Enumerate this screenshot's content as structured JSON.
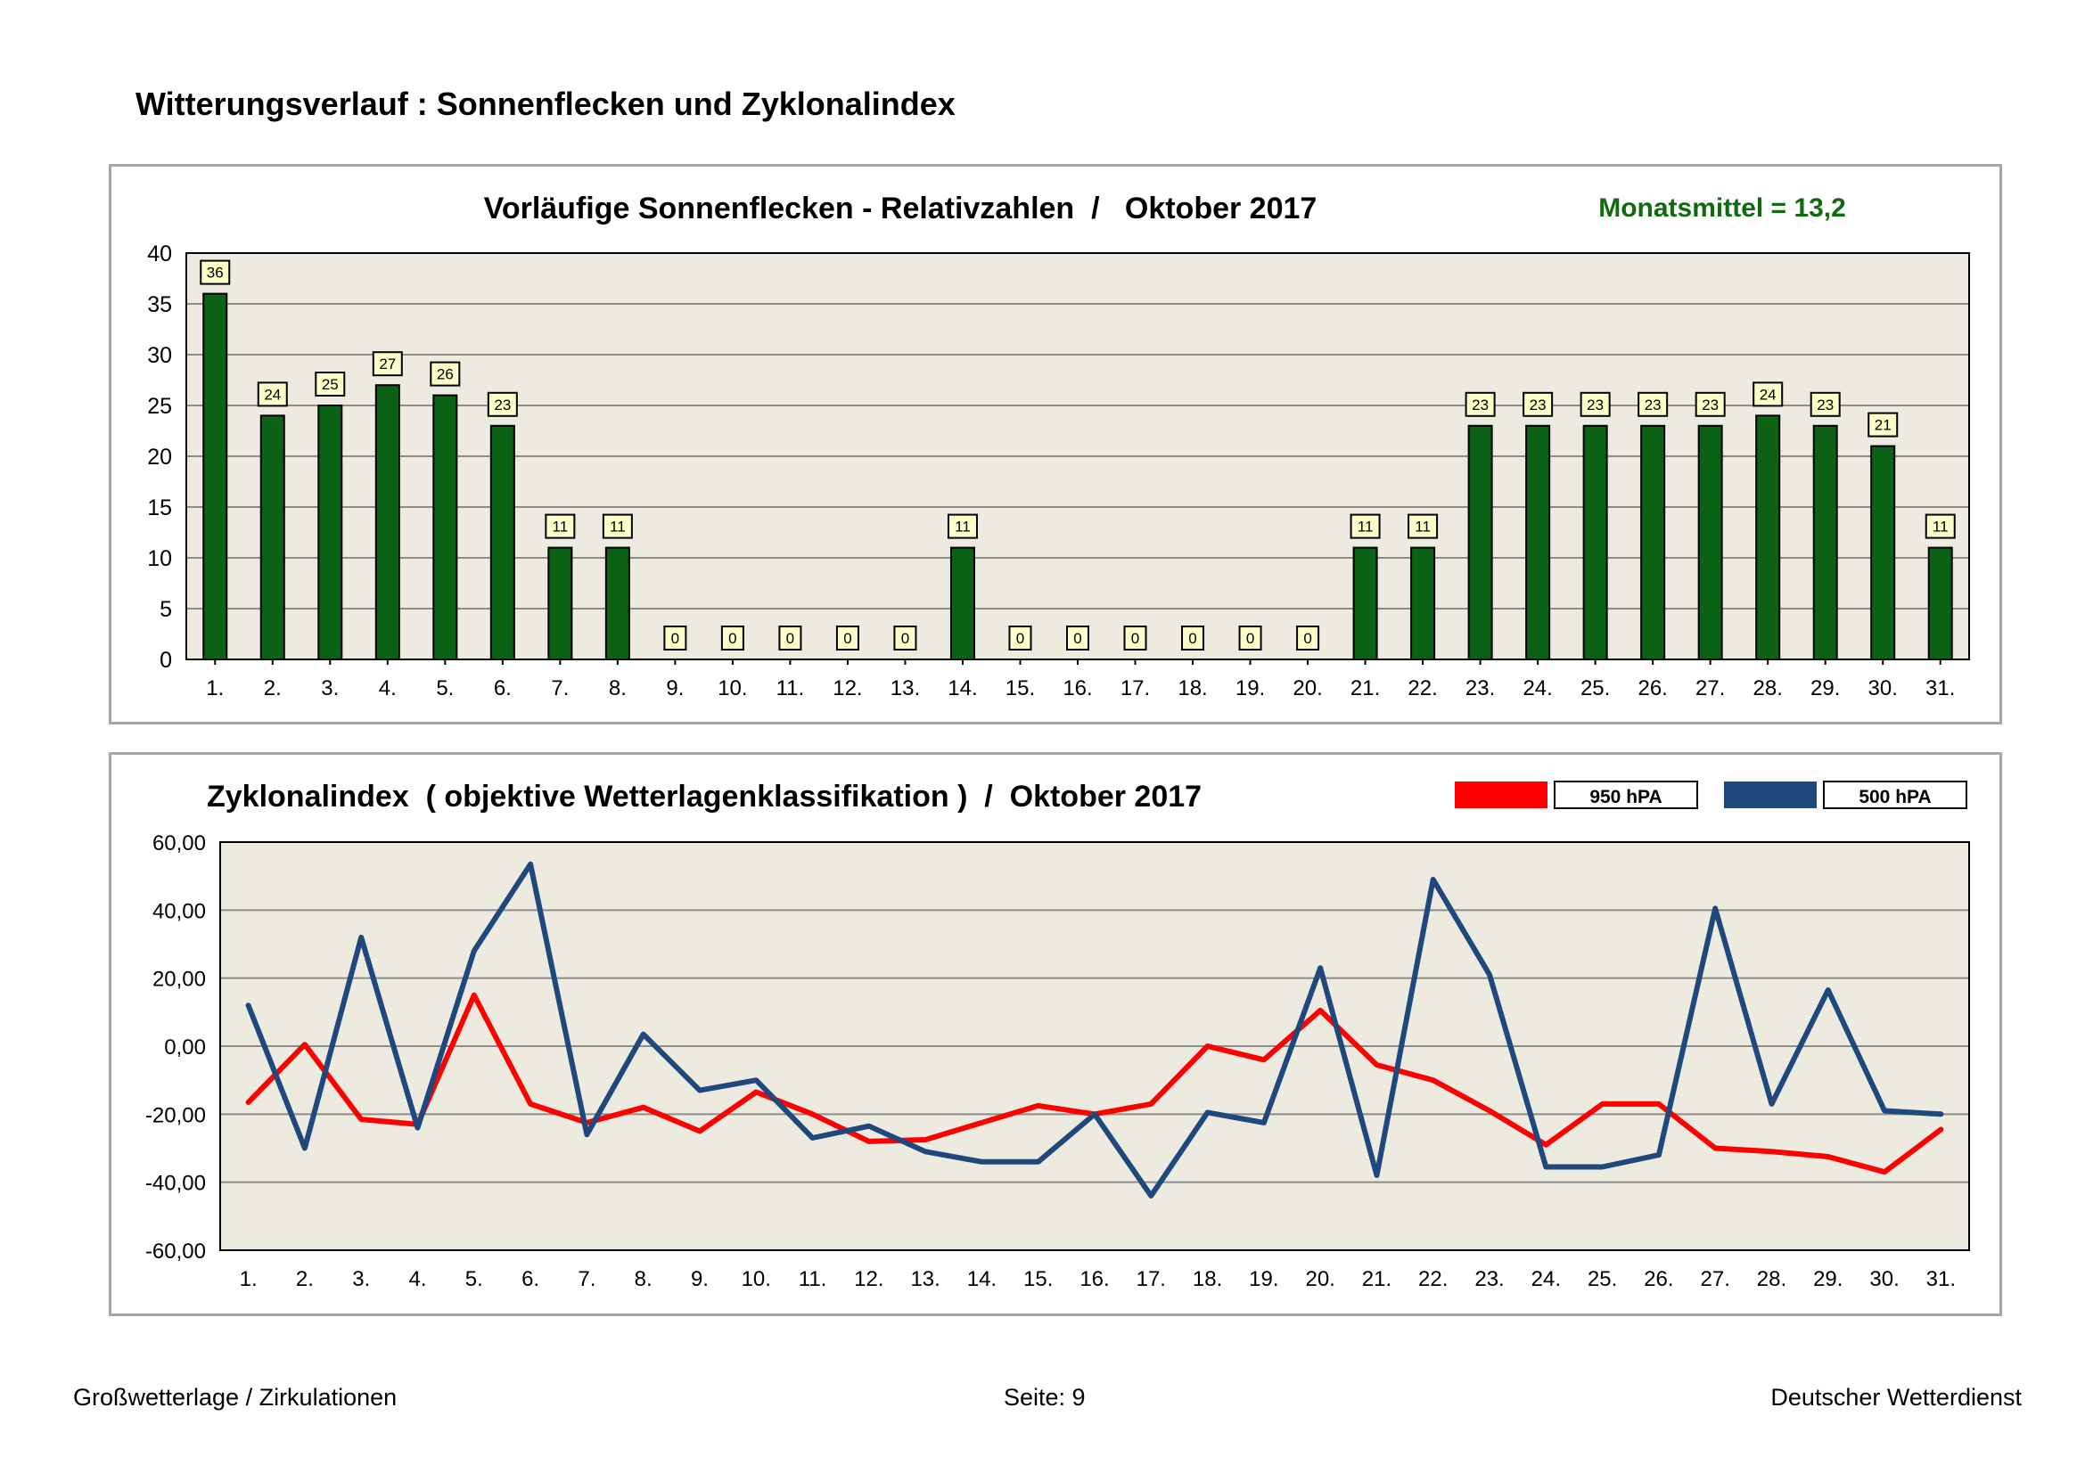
{
  "page": {
    "title": "Witterungsverlauf : Sonnenflecken und Zyklonalindex",
    "footer_left": "Großwetterlage / Zirkulationen",
    "footer_center": "Seite: 9",
    "footer_right": "Deutscher Wetterdienst"
  },
  "colors": {
    "bar_fill": "#0b6114",
    "plot_bg": "#edeae0",
    "label_bg": "#fdfdc8",
    "mean_text": "#0e6b0e",
    "line_950": "#ff0000",
    "line_500": "#1f497d"
  },
  "chart_data": [
    {
      "type": "bar",
      "title": "Vorläufige Sonnenflecken - Relativzahlen  /   Oktober 2017",
      "annotation": "Monatsmittel = 13,2",
      "categories": [
        "1.",
        "2.",
        "3.",
        "4.",
        "5.",
        "6.",
        "7.",
        "8.",
        "9.",
        "10.",
        "11.",
        "12.",
        "13.",
        "14.",
        "15.",
        "16.",
        "17.",
        "18.",
        "19.",
        "20.",
        "21.",
        "22.",
        "23.",
        "24.",
        "25.",
        "26.",
        "27.",
        "28.",
        "29.",
        "30.",
        "31."
      ],
      "values": [
        36,
        24,
        25,
        27,
        26,
        23,
        11,
        11,
        0,
        0,
        0,
        0,
        0,
        11,
        0,
        0,
        0,
        0,
        0,
        0,
        11,
        11,
        23,
        23,
        23,
        23,
        23,
        24,
        23,
        21,
        11
      ],
      "ylim": [
        0,
        40
      ],
      "yticks": [
        0,
        5,
        10,
        15,
        20,
        25,
        30,
        35,
        40
      ],
      "ytick_labels": [
        "0",
        "5",
        "10",
        "15",
        "20",
        "25",
        "30",
        "35",
        "40"
      ],
      "grid": true,
      "xlabel": "",
      "ylabel": ""
    },
    {
      "type": "line",
      "title": "Zyklonalindex  ( objektive Wetterlagenklassifikation )  /  Oktober 2017",
      "categories": [
        "1.",
        "2.",
        "3.",
        "4.",
        "5.",
        "6.",
        "7.",
        "8.",
        "9.",
        "10.",
        "11.",
        "12.",
        "13.",
        "14.",
        "15.",
        "16.",
        "17.",
        "18.",
        "19.",
        "20.",
        "21.",
        "22.",
        "23.",
        "24.",
        "25.",
        "26.",
        "27.",
        "28.",
        "29.",
        "30.",
        "31."
      ],
      "series": [
        {
          "name": "950 hPA",
          "color": "#ff0000",
          "values": [
            -16.5,
            0.5,
            -21.5,
            -23,
            15,
            -17,
            -22.5,
            -18,
            -25,
            -13.5,
            -20,
            -28,
            -27.5,
            -22.5,
            -17.5,
            -20,
            -17,
            0,
            -4,
            10.5,
            -5.5,
            -10,
            -19,
            -29,
            -17,
            -17,
            -30,
            -31,
            -32.5,
            -37,
            -24.5
          ]
        },
        {
          "name": "500 hPA",
          "color": "#1f497d",
          "values": [
            12,
            -30,
            32,
            -24,
            28,
            53.5,
            -26,
            3.5,
            -13,
            -10,
            -27,
            -23.5,
            -31,
            -34,
            -34,
            -20,
            -44,
            -19.5,
            -22.5,
            23,
            -38,
            49,
            21,
            -35.5,
            -35.5,
            -32,
            40.5,
            -17,
            16.5,
            -19,
            -20
          ]
        }
      ],
      "ylim": [
        -60,
        60
      ],
      "yticks": [
        -60,
        -40,
        -20,
        0,
        20,
        40,
        60
      ],
      "ytick_labels": [
        "-60,00",
        "-40,00",
        "-20,00",
        "0,00",
        "20,00",
        "40,00",
        "60,00"
      ],
      "legend": "top-right",
      "grid": true,
      "xlabel": "",
      "ylabel": ""
    }
  ]
}
